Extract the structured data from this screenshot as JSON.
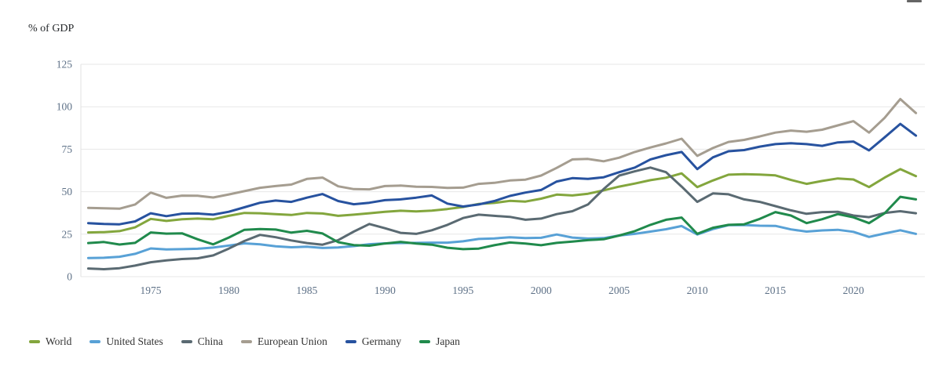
{
  "y_axis_title": "% of GDP",
  "chart_data": {
    "type": "line",
    "title": "",
    "ylabel": "% of GDP",
    "xlabel": "",
    "ylim": [
      0,
      125
    ],
    "y_ticks": [
      0,
      25,
      50,
      75,
      100,
      125
    ],
    "x_ticks": [
      1975,
      1980,
      1985,
      1990,
      1995,
      2000,
      2005,
      2010,
      2015,
      2020
    ],
    "grid": "horizontal",
    "legend_position": "bottom",
    "years": [
      1970,
      1971,
      1972,
      1973,
      1974,
      1975,
      1976,
      1977,
      1978,
      1979,
      1980,
      1981,
      1982,
      1983,
      1984,
      1985,
      1986,
      1987,
      1988,
      1989,
      1990,
      1991,
      1992,
      1993,
      1994,
      1995,
      1996,
      1997,
      1998,
      1999,
      2000,
      2001,
      2002,
      2003,
      2004,
      2005,
      2006,
      2007,
      2008,
      2009,
      2010,
      2011,
      2012,
      2013,
      2014,
      2015,
      2016,
      2017,
      2018,
      2019,
      2020,
      2021,
      2022,
      2023
    ],
    "series": [
      {
        "name": "World",
        "color": "#83a63d",
        "values": [
          26.0,
          26.2,
          26.8,
          29.0,
          34.0,
          32.8,
          33.8,
          34.2,
          33.8,
          35.8,
          37.5,
          37.3,
          36.8,
          36.3,
          37.5,
          37.2,
          35.8,
          36.5,
          37.3,
          38.2,
          38.8,
          38.4,
          38.9,
          39.8,
          41.0,
          42.8,
          43.4,
          44.6,
          44.2,
          45.9,
          48.3,
          47.8,
          48.8,
          50.8,
          53.0,
          54.8,
          56.8,
          58.2,
          60.8,
          52.7,
          56.6,
          60.0,
          60.3,
          60.1,
          59.6,
          56.9,
          54.6,
          56.3,
          57.8,
          57.2,
          52.7,
          58.3,
          63.3,
          59.2
        ]
      },
      {
        "name": "United States",
        "color": "#58a1d6",
        "values": [
          11.0,
          11.1,
          11.7,
          13.4,
          16.6,
          16.0,
          16.2,
          16.4,
          17.1,
          18.3,
          19.6,
          19.0,
          17.9,
          17.3,
          17.6,
          16.9,
          17.2,
          18.0,
          19.1,
          19.6,
          19.8,
          19.9,
          20.0,
          20.0,
          20.8,
          22.2,
          22.5,
          23.2,
          22.7,
          22.9,
          24.8,
          23.0,
          22.4,
          22.7,
          24.2,
          25.2,
          26.5,
          27.9,
          29.8,
          24.8,
          28.0,
          30.3,
          30.4,
          30.0,
          29.9,
          27.8,
          26.5,
          27.2,
          27.6,
          26.4,
          23.4,
          25.4,
          27.3,
          25.2
        ]
      },
      {
        "name": "China",
        "color": "#5a6a72",
        "values": [
          4.8,
          4.4,
          5.0,
          6.5,
          8.5,
          9.6,
          10.4,
          10.8,
          12.5,
          16.5,
          21.0,
          24.6,
          23.2,
          21.3,
          19.8,
          18.8,
          21.5,
          26.5,
          31.0,
          28.5,
          25.8,
          25.2,
          27.3,
          30.5,
          34.5,
          36.5,
          35.8,
          35.2,
          33.5,
          34.2,
          36.8,
          38.5,
          42.5,
          51.5,
          59.5,
          62.0,
          64.2,
          61.5,
          53.0,
          44.0,
          49.0,
          48.5,
          45.5,
          44.0,
          41.5,
          39.0,
          37.0,
          38.0,
          38.2,
          36.0,
          35.0,
          37.5,
          38.5,
          37.3
        ]
      },
      {
        "name": "European Union",
        "color": "#a59d90",
        "values": [
          40.5,
          40.2,
          40.0,
          42.5,
          49.5,
          46.4,
          47.7,
          47.6,
          46.6,
          48.4,
          50.3,
          52.3,
          53.3,
          54.2,
          57.5,
          58.3,
          53.2,
          51.5,
          51.4,
          53.3,
          53.6,
          52.9,
          52.8,
          52.2,
          52.4,
          54.6,
          55.2,
          56.6,
          57.1,
          59.5,
          64.0,
          69.0,
          69.3,
          67.9,
          70.0,
          73.4,
          76.0,
          78.4,
          81.2,
          71.1,
          75.7,
          79.3,
          80.5,
          82.5,
          84.8,
          86.0,
          85.3,
          86.5,
          89.0,
          91.5,
          84.8,
          93.5,
          104.5,
          96.3
        ]
      },
      {
        "name": "Germany",
        "color": "#27529f",
        "values": [
          31.5,
          31.0,
          30.8,
          32.5,
          37.3,
          35.6,
          37.1,
          37.2,
          36.5,
          38.2,
          40.8,
          43.5,
          44.8,
          44.0,
          46.5,
          48.6,
          44.5,
          42.6,
          43.5,
          45.0,
          45.5,
          46.5,
          47.8,
          43.0,
          41.3,
          42.5,
          44.5,
          47.5,
          49.5,
          51.0,
          56.0,
          58.0,
          57.5,
          58.5,
          61.5,
          64.2,
          69.0,
          71.5,
          73.4,
          63.3,
          70.2,
          73.8,
          74.5,
          76.5,
          78.0,
          78.5,
          78.0,
          77.0,
          79.0,
          79.5,
          74.3,
          82.0,
          89.9,
          83.0
        ]
      },
      {
        "name": "Japan",
        "color": "#208a4c",
        "values": [
          19.8,
          20.4,
          18.9,
          19.9,
          26.0,
          25.3,
          25.5,
          22.0,
          19.0,
          23.0,
          27.6,
          28.0,
          27.7,
          25.9,
          27.0,
          25.4,
          20.3,
          18.6,
          18.2,
          19.5,
          20.5,
          19.5,
          18.8,
          17.0,
          16.2,
          16.5,
          18.5,
          20.1,
          19.5,
          18.5,
          19.9,
          20.6,
          21.5,
          22.0,
          24.2,
          26.8,
          30.5,
          33.5,
          34.8,
          25.2,
          28.8,
          30.5,
          30.8,
          34.0,
          38.0,
          36.0,
          31.5,
          33.8,
          36.8,
          34.9,
          31.5,
          37.3,
          47.0,
          45.5
        ]
      }
    ]
  }
}
